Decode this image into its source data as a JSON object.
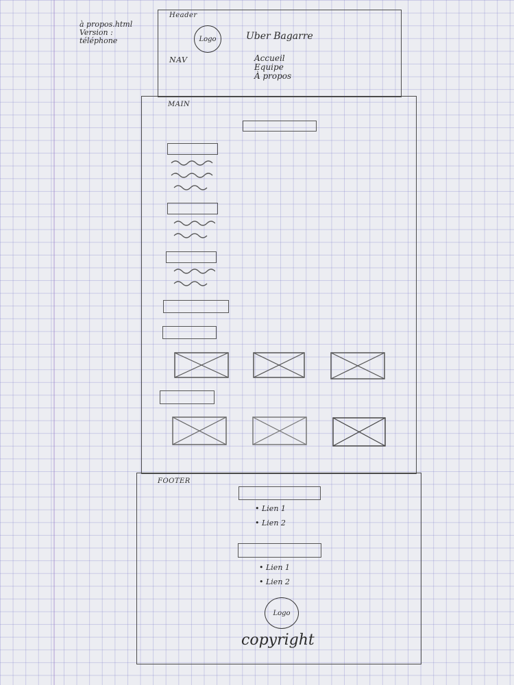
{
  "note": {
    "lines": [
      "à propos.html",
      "Version :",
      "téléphone"
    ]
  },
  "header": {
    "label": "Header",
    "logo": "Logo",
    "site_title": "Uber Bagarre",
    "nav_label": "NAV",
    "nav_items": [
      "Accueil",
      "Equipe",
      "À propos"
    ]
  },
  "main": {
    "label": "MAIN"
  },
  "footer": {
    "label": "FOOTER",
    "links_a": [
      "• Lien 1",
      "• Lien 2"
    ],
    "links_b": [
      "• Lien 1",
      "• Lien 2"
    ],
    "logo": "Logo",
    "copyright": "copyright"
  },
  "icons": {
    "image_placeholder": "image-placeholder-icon",
    "text_lines": "squiggle-text-icon"
  },
  "colors": {
    "paper": "#ecedf2",
    "grid": "#8a8ad0",
    "pencil": "#4a4a4a"
  }
}
